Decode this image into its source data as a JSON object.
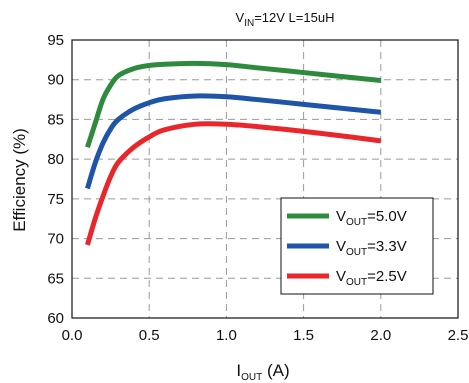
{
  "chart_data": {
    "type": "line",
    "title": {
      "main": "V",
      "sub": "IN",
      "rest": "=12V L=15uH"
    },
    "xlabel": {
      "main": "I",
      "sub": "OUT",
      "rest": " (A)"
    },
    "ylabel": "Efficiency (%)",
    "xlim": [
      0.0,
      2.5
    ],
    "ylim": [
      60,
      95
    ],
    "xticks": [
      "0.0",
      "0.5",
      "1.0",
      "1.5",
      "2.0",
      "2.5"
    ],
    "yticks": [
      "60",
      "65",
      "70",
      "75",
      "80",
      "85",
      "90",
      "95"
    ],
    "grid": true,
    "legend_position": "bottom-right",
    "series": [
      {
        "name": {
          "main": "V",
          "sub": "OUT",
          "rest": "=5.0V"
        },
        "color": "#2e8b3e",
        "points": [
          [
            0.1,
            81.5
          ],
          [
            0.15,
            84.5
          ],
          [
            0.2,
            87.5
          ],
          [
            0.25,
            89.3
          ],
          [
            0.3,
            90.5
          ],
          [
            0.4,
            91.4
          ],
          [
            0.5,
            91.8
          ],
          [
            0.6,
            91.95
          ],
          [
            0.8,
            92.05
          ],
          [
            1.0,
            91.9
          ],
          [
            1.2,
            91.5
          ],
          [
            1.5,
            90.9
          ],
          [
            1.8,
            90.3
          ],
          [
            2.0,
            89.9
          ]
        ]
      },
      {
        "name": {
          "main": "V",
          "sub": "OUT",
          "rest": "=3.3V"
        },
        "color": "#1f55a8",
        "points": [
          [
            0.1,
            76.3
          ],
          [
            0.15,
            79.5
          ],
          [
            0.2,
            82.0
          ],
          [
            0.25,
            83.8
          ],
          [
            0.3,
            85.0
          ],
          [
            0.4,
            86.3
          ],
          [
            0.5,
            87.1
          ],
          [
            0.6,
            87.6
          ],
          [
            0.8,
            87.95
          ],
          [
            1.0,
            87.85
          ],
          [
            1.2,
            87.5
          ],
          [
            1.5,
            86.9
          ],
          [
            1.8,
            86.3
          ],
          [
            2.0,
            85.9
          ]
        ]
      },
      {
        "name": {
          "main": "V",
          "sub": "OUT",
          "rest": "=2.5V"
        },
        "color": "#e8262b",
        "points": [
          [
            0.1,
            69.2
          ],
          [
            0.15,
            72.5
          ],
          [
            0.2,
            75.3
          ],
          [
            0.25,
            77.8
          ],
          [
            0.3,
            79.6
          ],
          [
            0.4,
            81.5
          ],
          [
            0.5,
            82.8
          ],
          [
            0.6,
            83.7
          ],
          [
            0.8,
            84.4
          ],
          [
            1.0,
            84.4
          ],
          [
            1.2,
            84.1
          ],
          [
            1.5,
            83.5
          ],
          [
            1.8,
            82.8
          ],
          [
            2.0,
            82.3
          ]
        ]
      }
    ]
  }
}
